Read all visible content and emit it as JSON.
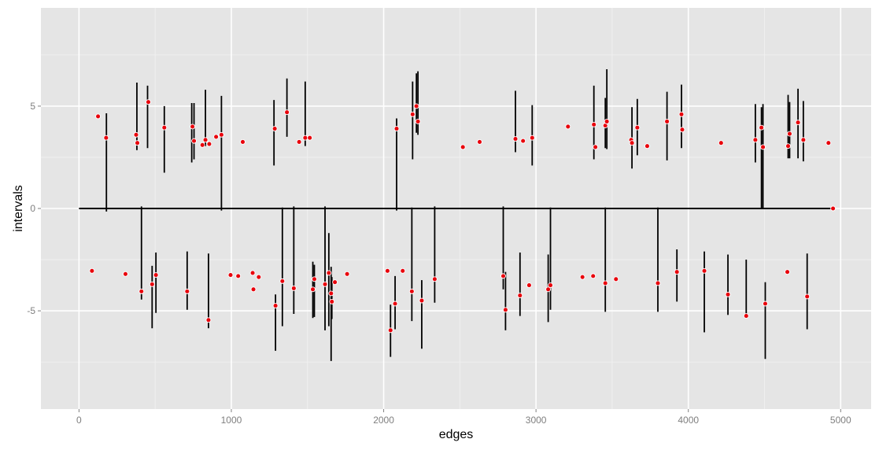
{
  "chart_data": {
    "type": "scatter",
    "xlabel": "edges",
    "ylabel": "intervals",
    "xlim": [
      -250,
      5200
    ],
    "ylim": [
      -9.8,
      9.8
    ],
    "x_ticks": [
      0,
      1000,
      2000,
      3000,
      4000,
      5000
    ],
    "x_tick_labels": [
      "0",
      "1000",
      "2000",
      "3000",
      "4000",
      "5000"
    ],
    "y_ticks": [
      -5,
      0,
      5
    ],
    "y_tick_labels": [
      "-5",
      "0",
      "5"
    ],
    "grid": true,
    "background_color": "#e5e5e5",
    "grid_color": "#ffffff",
    "point_color": "#e8000b",
    "segment_color": "#000000",
    "baseline": {
      "x": [
        0,
        4950
      ],
      "y": 0
    },
    "points": [
      [
        125,
        4.5
      ],
      [
        178,
        3.45
      ],
      [
        375,
        3.6
      ],
      [
        383,
        3.2
      ],
      [
        455,
        5.2
      ],
      [
        560,
        3.95
      ],
      [
        745,
        4.0
      ],
      [
        755,
        3.3
      ],
      [
        810,
        3.1
      ],
      [
        830,
        3.35
      ],
      [
        855,
        3.15
      ],
      [
        900,
        3.5
      ],
      [
        935,
        3.6
      ],
      [
        1075,
        3.25
      ],
      [
        1285,
        3.9
      ],
      [
        1365,
        4.7
      ],
      [
        1445,
        3.25
      ],
      [
        1485,
        3.45
      ],
      [
        1515,
        3.45
      ],
      [
        2085,
        3.9
      ],
      [
        2190,
        4.6
      ],
      [
        2215,
        5.0
      ],
      [
        2225,
        4.25
      ],
      [
        2520,
        3.0
      ],
      [
        2630,
        3.25
      ],
      [
        2865,
        3.4
      ],
      [
        2915,
        3.3
      ],
      [
        2975,
        3.45
      ],
      [
        3210,
        4.0
      ],
      [
        3380,
        4.1
      ],
      [
        3390,
        3.0
      ],
      [
        3455,
        4.05
      ],
      [
        3465,
        4.25
      ],
      [
        3625,
        3.35
      ],
      [
        3630,
        3.2
      ],
      [
        3665,
        3.95
      ],
      [
        3730,
        3.05
      ],
      [
        3860,
        4.25
      ],
      [
        3955,
        4.6
      ],
      [
        3960,
        3.85
      ],
      [
        4215,
        3.2
      ],
      [
        4440,
        3.35
      ],
      [
        4480,
        3.95
      ],
      [
        4490,
        3.0
      ],
      [
        4655,
        3.05
      ],
      [
        4665,
        3.65
      ],
      [
        4720,
        4.2
      ],
      [
        4755,
        3.35
      ],
      [
        4920,
        3.2
      ],
      [
        4950,
        0.0
      ],
      [
        85,
        -3.05
      ],
      [
        305,
        -3.2
      ],
      [
        410,
        -4.05
      ],
      [
        480,
        -3.7
      ],
      [
        505,
        -3.25
      ],
      [
        710,
        -4.05
      ],
      [
        850,
        -5.45
      ],
      [
        995,
        -3.25
      ],
      [
        1045,
        -3.3
      ],
      [
        1140,
        -3.15
      ],
      [
        1145,
        -3.95
      ],
      [
        1180,
        -3.35
      ],
      [
        1290,
        -4.75
      ],
      [
        1335,
        -3.55
      ],
      [
        1410,
        -3.9
      ],
      [
        1535,
        -3.95
      ],
      [
        1545,
        -3.45
      ],
      [
        1615,
        -3.7
      ],
      [
        1640,
        -3.15
      ],
      [
        1655,
        -4.15
      ],
      [
        1660,
        -4.55
      ],
      [
        1680,
        -3.6
      ],
      [
        1760,
        -3.2
      ],
      [
        2025,
        -3.05
      ],
      [
        2045,
        -5.95
      ],
      [
        2075,
        -4.65
      ],
      [
        2125,
        -3.05
      ],
      [
        2185,
        -4.05
      ],
      [
        2250,
        -4.5
      ],
      [
        2335,
        -3.45
      ],
      [
        2785,
        -3.3
      ],
      [
        2800,
        -4.95
      ],
      [
        2895,
        -4.25
      ],
      [
        2955,
        -3.75
      ],
      [
        3080,
        -3.95
      ],
      [
        3095,
        -3.75
      ],
      [
        3305,
        -3.35
      ],
      [
        3375,
        -3.3
      ],
      [
        3455,
        -3.65
      ],
      [
        3525,
        -3.45
      ],
      [
        3800,
        -3.65
      ],
      [
        3925,
        -3.1
      ],
      [
        4105,
        -3.05
      ],
      [
        4260,
        -4.2
      ],
      [
        4380,
        -5.25
      ],
      [
        4505,
        -4.65
      ],
      [
        4650,
        -3.1
      ],
      [
        4780,
        -4.3
      ]
    ],
    "segments": [
      [
        180,
        -0.15,
        4.65
      ],
      [
        380,
        2.85,
        6.15
      ],
      [
        450,
        2.95,
        6.0
      ],
      [
        560,
        1.75,
        5.0
      ],
      [
        740,
        2.25,
        5.15
      ],
      [
        755,
        2.4,
        5.15
      ],
      [
        830,
        3.05,
        5.8
      ],
      [
        935,
        -0.1,
        5.5
      ],
      [
        1280,
        2.1,
        5.3
      ],
      [
        1365,
        3.5,
        6.35
      ],
      [
        1485,
        3.05,
        6.2
      ],
      [
        2085,
        -0.1,
        4.4
      ],
      [
        2190,
        2.4,
        6.2
      ],
      [
        2215,
        3.7,
        6.6
      ],
      [
        2225,
        3.6,
        6.7
      ],
      [
        2865,
        2.75,
        5.75
      ],
      [
        2975,
        2.1,
        5.05
      ],
      [
        3380,
        2.4,
        6.0
      ],
      [
        3455,
        2.95,
        5.4
      ],
      [
        3465,
        2.9,
        6.8
      ],
      [
        3630,
        1.95,
        4.95
      ],
      [
        3665,
        2.6,
        5.35
      ],
      [
        3860,
        2.35,
        5.7
      ],
      [
        3955,
        2.95,
        6.05
      ],
      [
        4440,
        2.25,
        5.1
      ],
      [
        4480,
        0.0,
        4.95
      ],
      [
        4490,
        0.0,
        5.1
      ],
      [
        4655,
        2.45,
        5.55
      ],
      [
        4665,
        2.45,
        5.2
      ],
      [
        4720,
        2.45,
        5.85
      ],
      [
        4755,
        2.3,
        5.25
      ],
      [
        410,
        -4.45,
        0.1
      ],
      [
        480,
        -5.85,
        -2.8
      ],
      [
        505,
        -5.1,
        -2.15
      ],
      [
        710,
        -4.95,
        -2.1
      ],
      [
        850,
        -5.85,
        -2.2
      ],
      [
        1290,
        -6.95,
        -4.2
      ],
      [
        1335,
        -5.75,
        0.05
      ],
      [
        1410,
        -5.15,
        0.1
      ],
      [
        1535,
        -5.35,
        -2.6
      ],
      [
        1545,
        -5.3,
        -2.75
      ],
      [
        1615,
        -5.95,
        0.1
      ],
      [
        1640,
        -5.75,
        -1.2
      ],
      [
        1655,
        -7.45,
        -2.85
      ],
      [
        1660,
        -5.4,
        -3.35
      ],
      [
        2045,
        -7.25,
        -4.7
      ],
      [
        2075,
        -5.9,
        -3.3
      ],
      [
        2185,
        -5.5,
        0.05
      ],
      [
        2250,
        -6.85,
        -3.5
      ],
      [
        2335,
        -4.6,
        0.1
      ],
      [
        2785,
        -3.95,
        0.1
      ],
      [
        2800,
        -5.95,
        -3.1
      ],
      [
        2895,
        -5.25,
        -2.15
      ],
      [
        3080,
        -5.55,
        -2.25
      ],
      [
        3095,
        -4.95,
        0.05
      ],
      [
        3455,
        -5.05,
        0.05
      ],
      [
        3800,
        -5.05,
        0.05
      ],
      [
        3925,
        -4.55,
        -2.0
      ],
      [
        4105,
        -6.05,
        -2.1
      ],
      [
        4260,
        -5.2,
        -2.25
      ],
      [
        4380,
        -5.35,
        -2.5
      ],
      [
        4505,
        -7.35,
        -3.6
      ],
      [
        4780,
        -5.9,
        -2.2
      ]
    ]
  }
}
